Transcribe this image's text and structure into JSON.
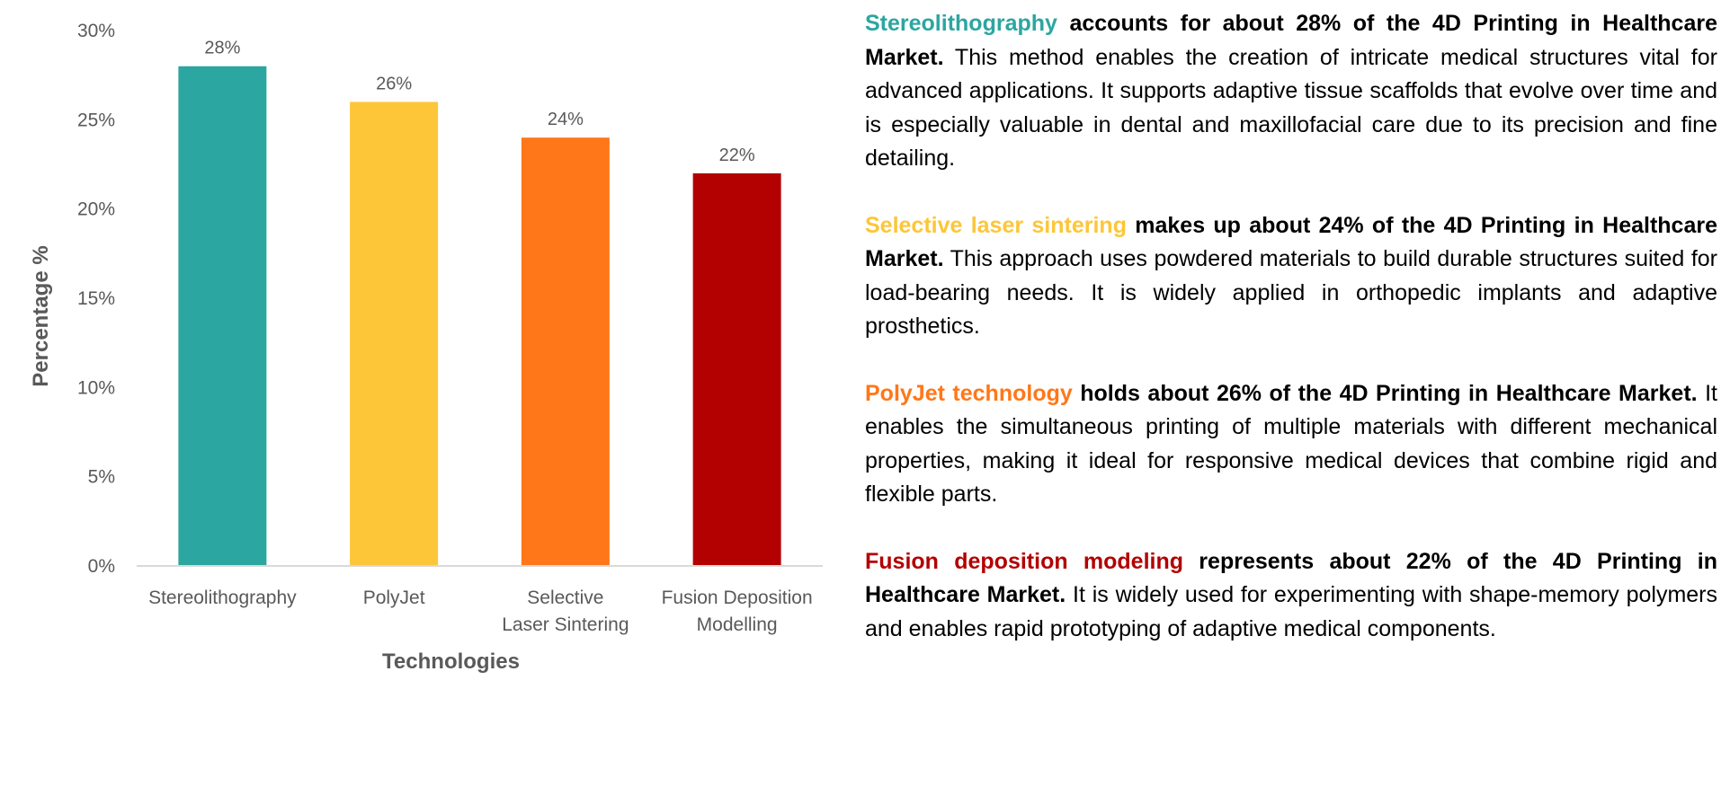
{
  "colors": {
    "stereolithography": "#2BA6A0",
    "polyjet": "#FDC638",
    "sls": "#FF7718",
    "fdm": "#B30000",
    "axis_text": "#595959",
    "body_text": "#000000"
  },
  "chart_data": {
    "type": "bar",
    "categories": [
      "Stereolithography",
      "PolyJet",
      "Selective Laser Sintering",
      "Fusion Deposition Modelling"
    ],
    "category_label_lines": [
      [
        "Stereolithography"
      ],
      [
        "PolyJet"
      ],
      [
        "Selective",
        "Laser Sintering"
      ],
      [
        "Fusion Deposition",
        "Modelling"
      ]
    ],
    "values": [
      28,
      26,
      24,
      22
    ],
    "data_labels": [
      "28%",
      "26%",
      "24%",
      "22%"
    ],
    "bar_colors": [
      "#2BA6A0",
      "#FDC638",
      "#FF7718",
      "#B30000"
    ],
    "xlabel": "Technologies",
    "ylabel": "Percentage %",
    "ylim": [
      0,
      30
    ],
    "yticks": [
      0,
      5,
      10,
      15,
      20,
      25,
      30
    ],
    "ytick_labels": [
      "0%",
      "5%",
      "10%",
      "15%",
      "20%",
      "25%",
      "30%"
    ],
    "grid": false,
    "legend": "none"
  },
  "paragraphs": [
    {
      "lead": "Stereolithography",
      "claim": " accounts for about 28% of the 4D Printing in Healthcare Market.",
      "body": " This method enables the creation of intricate medical structures vital for advanced applications. It supports adaptive tissue scaffolds that evolve over time and is especially valuable in dental and maxillofacial care due to its precision and fine detailing.",
      "color": "#2BA6A0"
    },
    {
      "lead": "Selective laser sintering",
      "claim": " makes up about 24% of the 4D Printing in Healthcare Market.",
      "body": " This approach uses powdered materials to build durable structures suited for load-bearing needs. It is widely applied in orthopedic implants and adaptive prosthetics.",
      "color": "#FDC638"
    },
    {
      "lead": "PolyJet technology",
      "claim": " holds about 26% of the 4D Printing in Healthcare Market.",
      "body": " It enables the simultaneous printing of multiple materials with different mechanical properties, making it ideal for responsive medical devices that combine rigid and flexible parts.",
      "color": "#FF7718"
    },
    {
      "lead": "Fusion deposition modeling",
      "claim": " represents about 22% of the 4D Printing in Healthcare Market.",
      "body": " It is widely used for experimenting with shape-memory polymers and enables rapid prototyping of adaptive medical components.",
      "color": "#B30000"
    }
  ]
}
